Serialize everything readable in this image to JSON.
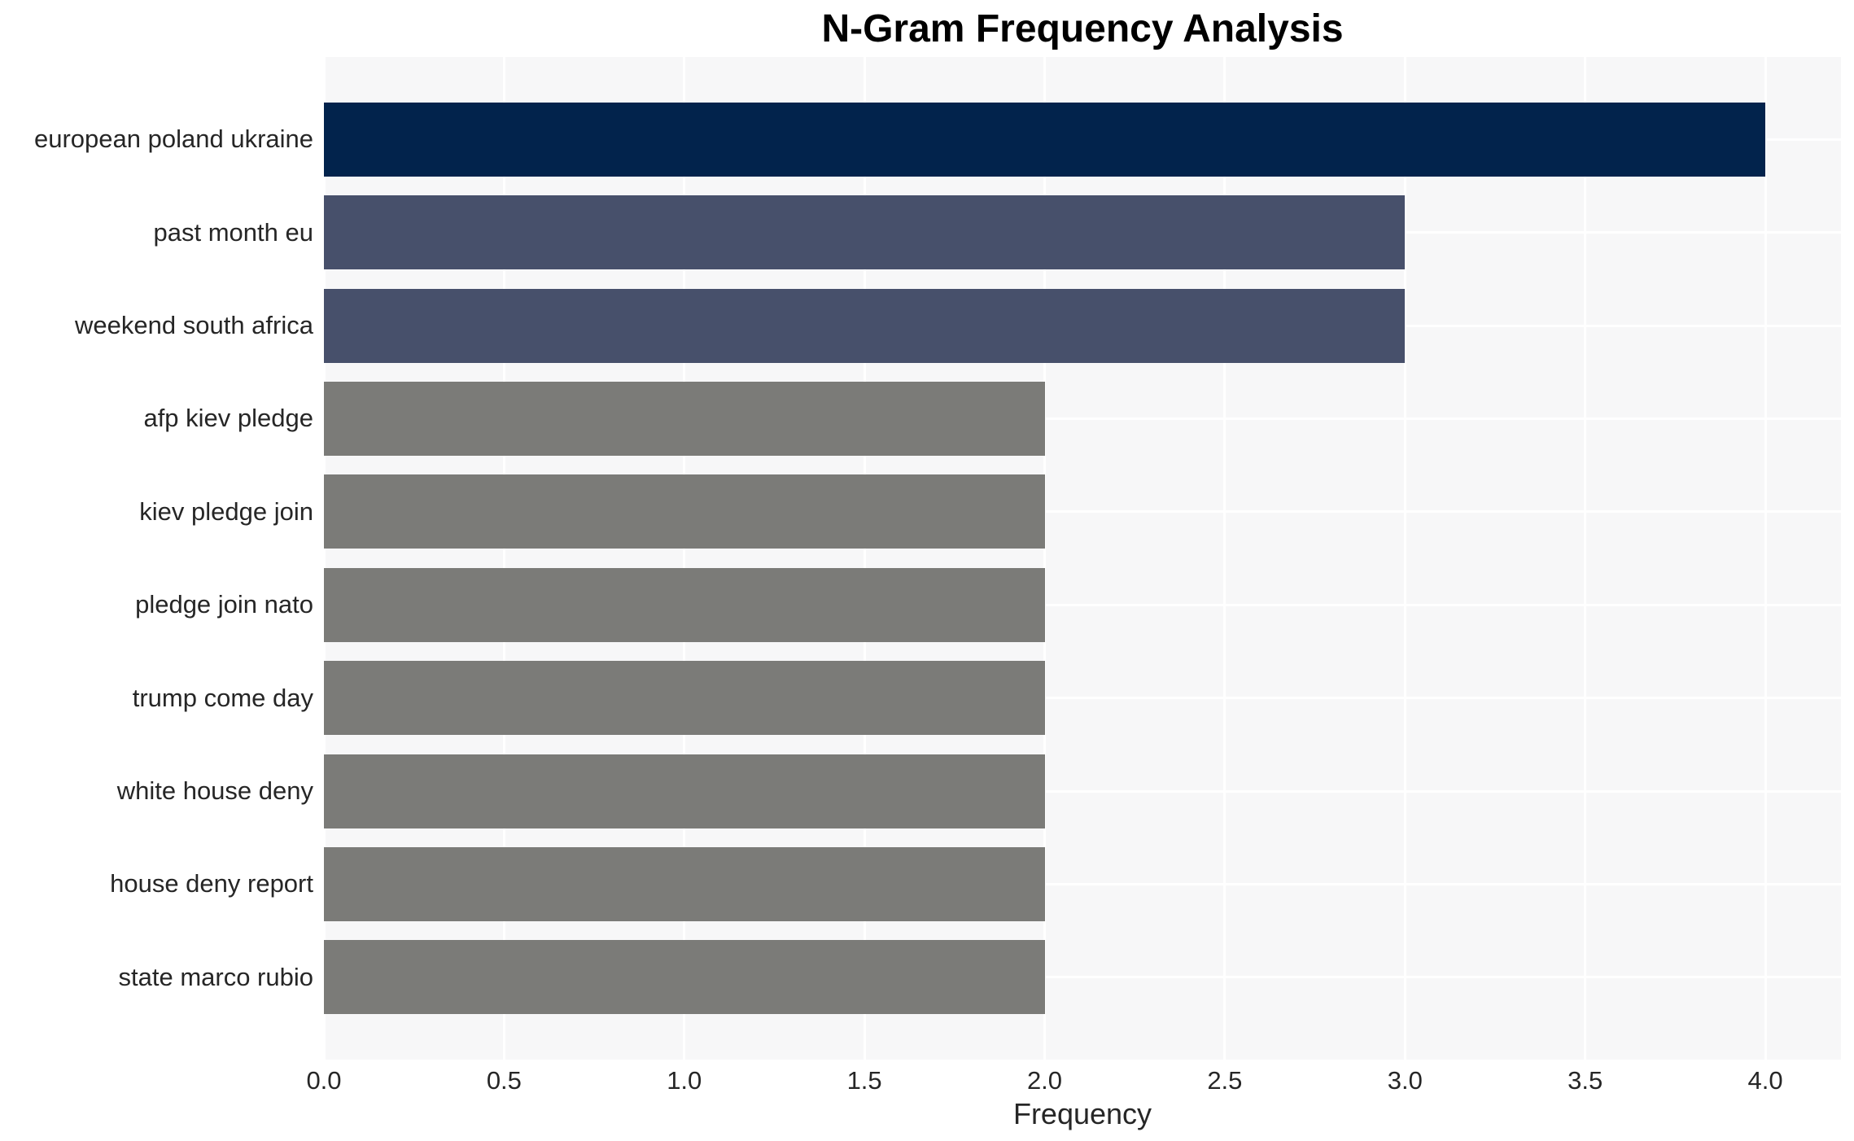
{
  "chart_data": {
    "type": "bar",
    "orientation": "horizontal",
    "title": "N-Gram Frequency Analysis",
    "xlabel": "Frequency",
    "ylabel": "",
    "categories": [
      "european poland ukraine",
      "past month eu",
      "weekend south africa",
      "afp kiev pledge",
      "kiev pledge join",
      "pledge join nato",
      "trump come day",
      "white house deny",
      "house deny report",
      "state marco rubio"
    ],
    "values": [
      4.0,
      3.0,
      3.0,
      2.0,
      2.0,
      2.0,
      2.0,
      2.0,
      2.0,
      2.0
    ],
    "bar_colors": [
      "#02234c",
      "#47506b",
      "#47506b",
      "#7b7b78",
      "#7b7b78",
      "#7b7b78",
      "#7b7b78",
      "#7b7b78",
      "#7b7b78",
      "#7b7b78"
    ],
    "xticks": [
      "0.0",
      "0.5",
      "1.0",
      "1.5",
      "2.0",
      "2.5",
      "3.0",
      "3.5",
      "4.0"
    ],
    "xlim": [
      0,
      4.21
    ],
    "grid": true,
    "legend": false,
    "plot_background": "#f7f7f8",
    "grid_color": "#ffffff",
    "text_color": "#262626",
    "title_color": "#000000"
  }
}
